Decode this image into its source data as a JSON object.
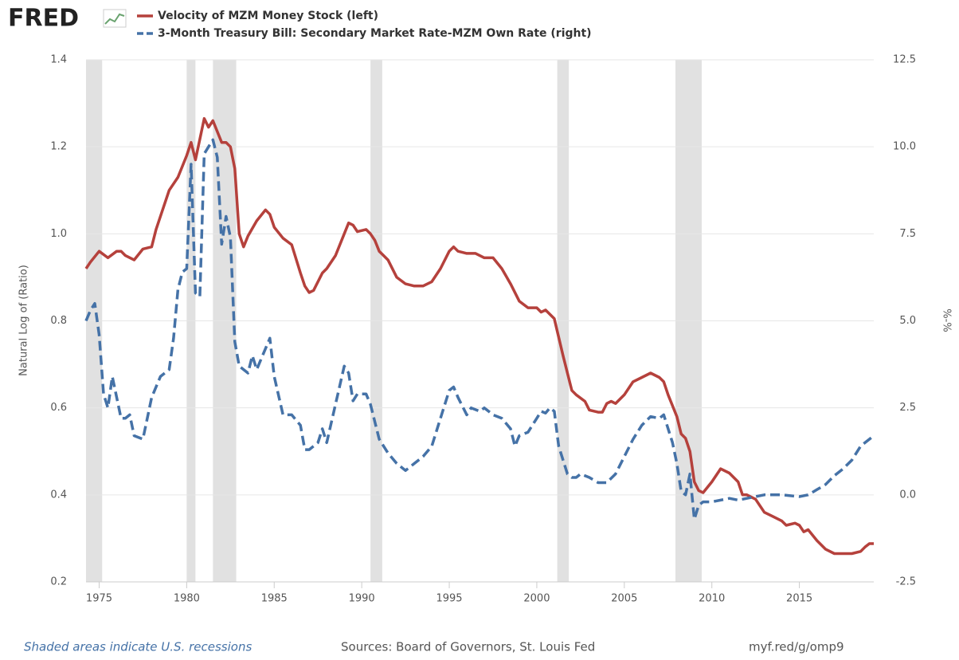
{
  "logo": "FRED",
  "chart_data": {
    "type": "line",
    "y_label": "Natural Log of (Ratio)",
    "y2_label": "%-%",
    "xlim": [
      1974.25,
      2019.25
    ],
    "xticks": [
      1975,
      1980,
      1985,
      1990,
      1995,
      2000,
      2005,
      2010,
      2015
    ],
    "ylim": [
      0.2,
      1.4
    ],
    "yticks": [
      0.2,
      0.4,
      0.6,
      0.8,
      {
        "value": 1,
        "label": "1.0"
      },
      1.2,
      1.4
    ],
    "y2lim": [
      -2.5,
      12.5
    ],
    "y2ticks": [
      -2.5,
      {
        "value": 0,
        "label": "0.0"
      },
      2.5,
      {
        "value": 5,
        "label": "5.0"
      },
      7.5,
      {
        "value": 10,
        "label": "10.0"
      },
      12.5
    ],
    "grid": true,
    "recessions": [
      [
        1973.83,
        1975.17
      ],
      [
        1980.0,
        1980.5
      ],
      [
        1981.5,
        1982.83
      ],
      [
        1990.5,
        1991.17
      ],
      [
        2001.17,
        2001.83
      ],
      [
        2007.92,
        2009.42
      ]
    ],
    "recession_color": "#e1e1e1",
    "series": [
      {
        "name": "Velocity of MZM Money Stock (left)",
        "color": "#b5413c",
        "axis": "y",
        "dashed": false,
        "x": [
          1974.25,
          1974.5,
          1975,
          1975.5,
          1976,
          1976.25,
          1976.5,
          1977,
          1977.5,
          1978,
          1978.25,
          1978.5,
          1979,
          1979.5,
          1980,
          1980.25,
          1980.5,
          1981,
          1981.25,
          1981.5,
          1982,
          1982.25,
          1982.5,
          1982.75,
          1983,
          1983.25,
          1983.5,
          1984,
          1984.5,
          1984.75,
          1985,
          1985.5,
          1986,
          1986.5,
          1986.75,
          1987,
          1987.25,
          1987.75,
          1988,
          1988.5,
          1989,
          1989.25,
          1989.5,
          1989.75,
          1990.25,
          1990.5,
          1990.75,
          1991,
          1991.25,
          1991.5,
          1992,
          1992.5,
          1993,
          1993.5,
          1994,
          1994.5,
          1995,
          1995.25,
          1995.5,
          1996,
          1996.5,
          1997,
          1997.5,
          1998,
          1998.5,
          1999,
          1999.5,
          2000,
          2000.25,
          2000.5,
          2001,
          2001.5,
          2002,
          2002.25,
          2002.75,
          2003,
          2003.5,
          2003.75,
          2004,
          2004.25,
          2004.5,
          2005,
          2005.5,
          2006,
          2006.5,
          2007,
          2007.25,
          2007.5,
          2008,
          2008.25,
          2008.5,
          2008.75,
          2009,
          2009.25,
          2009.5,
          2010,
          2010.5,
          2011,
          2011.5,
          2011.75,
          2012,
          2012.5,
          2013,
          2013.5,
          2014,
          2014.25,
          2014.75,
          2015,
          2015.25,
          2015.5,
          2016,
          2016.5,
          2017,
          2017.5,
          2018,
          2018.5,
          2018.75,
          2019,
          2019.25
        ],
        "values": [
          0.92,
          0.935,
          0.96,
          0.945,
          0.96,
          0.96,
          0.95,
          0.94,
          0.965,
          0.97,
          1.01,
          1.04,
          1.1,
          1.13,
          1.18,
          1.21,
          1.17,
          1.265,
          1.245,
          1.26,
          1.21,
          1.21,
          1.2,
          1.15,
          1.0,
          0.97,
          0.995,
          1.03,
          1.055,
          1.045,
          1.015,
          0.99,
          0.975,
          0.91,
          0.88,
          0.865,
          0.87,
          0.91,
          0.92,
          0.95,
          1.0,
          1.025,
          1.02,
          1.005,
          1.01,
          1.0,
          0.985,
          0.96,
          0.95,
          0.94,
          0.9,
          0.885,
          0.88,
          0.88,
          0.89,
          0.92,
          0.96,
          0.97,
          0.96,
          0.955,
          0.955,
          0.945,
          0.945,
          0.92,
          0.885,
          0.845,
          0.83,
          0.83,
          0.82,
          0.825,
          0.805,
          0.72,
          0.64,
          0.63,
          0.615,
          0.595,
          0.59,
          0.59,
          0.61,
          0.615,
          0.61,
          0.63,
          0.66,
          0.67,
          0.68,
          0.67,
          0.66,
          0.63,
          0.58,
          0.54,
          0.53,
          0.5,
          0.43,
          0.41,
          0.405,
          0.43,
          0.46,
          0.45,
          0.43,
          0.4,
          0.4,
          0.39,
          0.36,
          0.35,
          0.34,
          0.33,
          0.335,
          0.33,
          0.315,
          0.32,
          0.295,
          0.275,
          0.265,
          0.265,
          0.265,
          0.27,
          0.28,
          0.288,
          0.288
        ]
      },
      {
        "name": "3-Month Treasury Bill: Secondary Market Rate-MZM Own Rate (right)",
        "color": "#4572a7",
        "axis": "y2",
        "dashed": true,
        "x": [
          1974.25,
          1974.5,
          1974.75,
          1975,
          1975.25,
          1975.5,
          1975.75,
          1976,
          1976.25,
          1976.5,
          1976.75,
          1977,
          1977.5,
          1978,
          1978.5,
          1979,
          1979.25,
          1979.5,
          1979.75,
          1980,
          1980.25,
          1980.5,
          1980.75,
          1981,
          1981.25,
          1981.5,
          1981.75,
          1982,
          1982.25,
          1982.5,
          1982.75,
          1983,
          1983.25,
          1983.5,
          1983.75,
          1984,
          1984.5,
          1984.75,
          1985,
          1985.5,
          1986,
          1986.5,
          1986.75,
          1987,
          1987.5,
          1987.75,
          1988,
          1988.5,
          1989,
          1989.25,
          1989.5,
          1989.75,
          1990.25,
          1990.5,
          1991,
          1991.5,
          1992,
          1992.5,
          1993,
          1993.5,
          1994,
          1994.5,
          1995,
          1995.25,
          1995.5,
          1996,
          1996.25,
          1996.75,
          1997,
          1997.5,
          1998,
          1998.5,
          1998.75,
          1999,
          1999.5,
          2000,
          2000.25,
          2000.5,
          2000.75,
          2001,
          2001.25,
          2001.75,
          2002,
          2002.25,
          2002.5,
          2003,
          2003.5,
          2004,
          2004.5,
          2005,
          2005.5,
          2006,
          2006.5,
          2007,
          2007.25,
          2007.75,
          2008,
          2008.25,
          2008.5,
          2008.75,
          2009,
          2009.25,
          2009.5,
          2010,
          2011,
          2011.5,
          2012,
          2013,
          2014,
          2015,
          2015.5,
          2016,
          2016.5,
          2017,
          2017.5,
          2018,
          2018.5,
          2019,
          2019.25
        ],
        "values": [
          5.0,
          5.3,
          5.5,
          4.6,
          2.9,
          2.5,
          3.4,
          2.8,
          2.2,
          2.2,
          2.3,
          1.7,
          1.6,
          2.8,
          3.4,
          3.6,
          4.5,
          5.9,
          6.4,
          6.5,
          9.5,
          5.8,
          5.7,
          9.8,
          10.0,
          10.2,
          9.7,
          7.2,
          8.0,
          7.4,
          4.4,
          3.7,
          3.6,
          3.5,
          4.0,
          3.6,
          4.2,
          4.5,
          3.4,
          2.3,
          2.3,
          2.0,
          1.3,
          1.3,
          1.5,
          1.9,
          1.5,
          2.6,
          3.7,
          3.5,
          2.7,
          2.9,
          2.9,
          2.6,
          1.6,
          1.2,
          0.9,
          0.7,
          0.9,
          1.1,
          1.4,
          2.2,
          3.0,
          3.1,
          2.8,
          2.3,
          2.5,
          2.4,
          2.5,
          2.3,
          2.2,
          1.9,
          1.4,
          1.7,
          1.8,
          2.2,
          2.4,
          2.35,
          2.5,
          2.4,
          1.4,
          0.6,
          0.5,
          0.5,
          0.6,
          0.5,
          0.35,
          0.35,
          0.6,
          1.1,
          1.6,
          2.0,
          2.25,
          2.2,
          2.3,
          1.5,
          0.9,
          0.1,
          0.0,
          0.6,
          -0.7,
          -0.3,
          -0.2,
          -0.2,
          -0.1,
          -0.15,
          -0.1,
          0.0,
          0.0,
          -0.05,
          0.0,
          0.15,
          0.3,
          0.55,
          0.75,
          1.0,
          1.4,
          1.6,
          1.7
        ]
      }
    ],
    "footer_left": "Shaded areas indicate U.S. recessions",
    "footer_center": "Sources: Board of Governors, St. Louis Fed",
    "footer_right": "myf.red/g/omp9"
  }
}
